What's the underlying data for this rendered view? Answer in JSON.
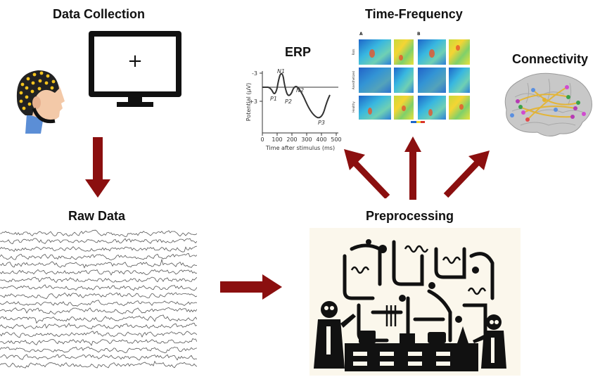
{
  "labels": {
    "data_collection": "Data Collection",
    "time_frequency": "Time-Frequency",
    "erp": "ERP",
    "connectivity": "Connectivity",
    "raw_data": "Raw Data",
    "preprocessing": "Preprocessing"
  },
  "monitor": {
    "fixation": "+"
  },
  "erp_plot": {
    "y_label": "Potential (μV)",
    "x_label": "Time after stimulus (ms)",
    "y_ticks": [
      "-3",
      "+3"
    ],
    "x_ticks": [
      "0",
      "100",
      "200",
      "300",
      "400",
      "500"
    ],
    "components": [
      "N1",
      "P1",
      "P2",
      "N2",
      "P3"
    ]
  },
  "tf_figure": {
    "panel_labels": [
      "A",
      "B"
    ],
    "row_labels": [
      "Rats",
      "Anesthetized",
      "Healthy"
    ]
  },
  "colors": {
    "arrow": "#8b0f0f",
    "title": "#111111"
  }
}
